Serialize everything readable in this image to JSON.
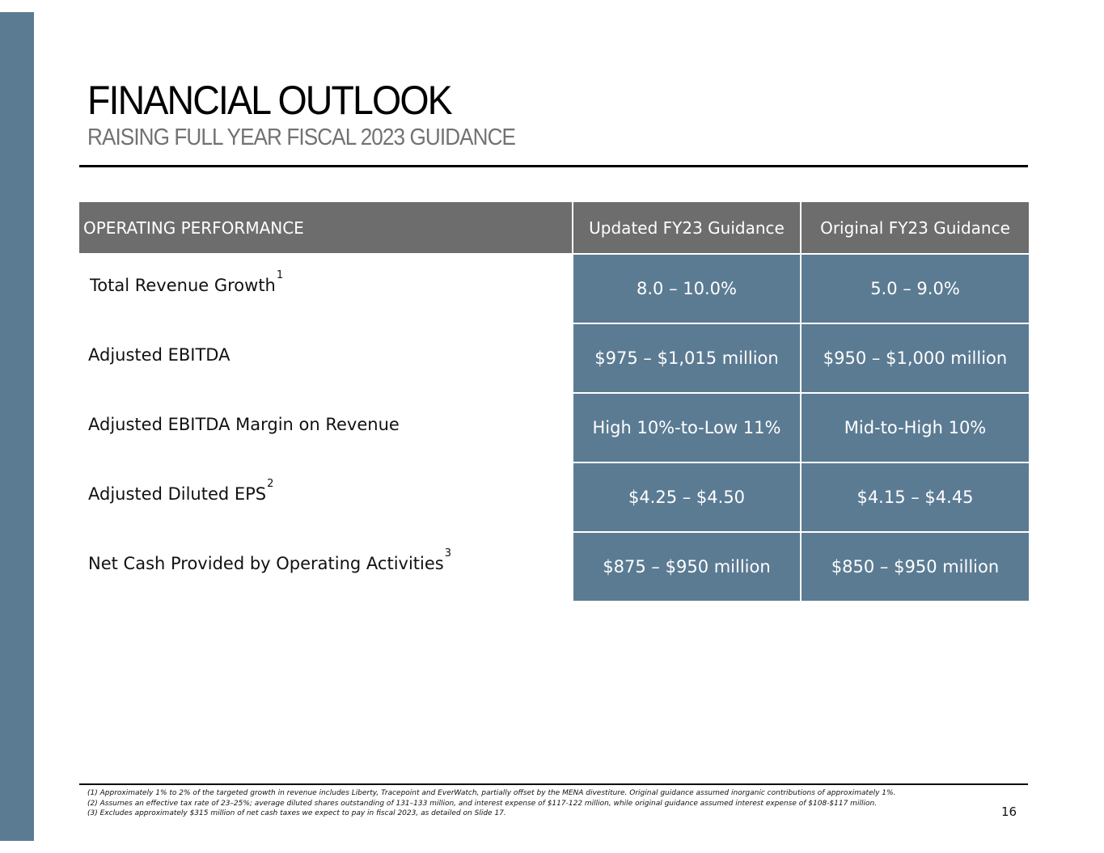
{
  "slide": {
    "title": "FINANCIAL OUTLOOK",
    "subtitle": "RAISING FULL YEAR FISCAL 2023 GUIDANCE",
    "page_number": "16",
    "accent_color": "#5b7b93",
    "header_color": "#6d6d6d"
  },
  "table": {
    "headers": [
      "OPERATING PERFORMANCE",
      "Updated FY23 Guidance",
      "Original FY23 Guidance"
    ],
    "rows": [
      {
        "metric": "Total Revenue Growth",
        "sup": "1",
        "updated": "8.0 – 10.0%",
        "original": "5.0 – 9.0%"
      },
      {
        "metric": "Adjusted EBITDA",
        "sup": "",
        "updated": "$975 – $1,015 million",
        "original": "$950 – $1,000 million"
      },
      {
        "metric": "Adjusted EBITDA Margin on Revenue",
        "sup": "",
        "updated": "High 10%-to-Low 11%",
        "original": "Mid-to-High 10%"
      },
      {
        "metric": "Adjusted Diluted EPS",
        "sup": "2",
        "updated": "$4.25 – $4.50",
        "original": "$4.15 – $4.45"
      },
      {
        "metric": "Net Cash Provided by Operating Activities",
        "sup": "3",
        "updated": "$875 – $950 million",
        "original": "$850 – $950 million"
      }
    ]
  },
  "footnotes": [
    "(1) Approximately 1% to 2% of the targeted growth in revenue includes Liberty, Tracepoint and EverWatch, partially offset by the MENA divestiture. Original guidance assumed inorganic contributions of approximately 1%.",
    "(2) Assumes an effective tax rate of 23–25%; average diluted shares outstanding of 131–133 million, and interest expense of $117-122 million, while original guidance assumed interest expense of $108-$117 million.",
    "(3) Excludes approximately $315 million of net cash taxes we expect to pay in fiscal 2023, as detailed on Slide 17."
  ]
}
